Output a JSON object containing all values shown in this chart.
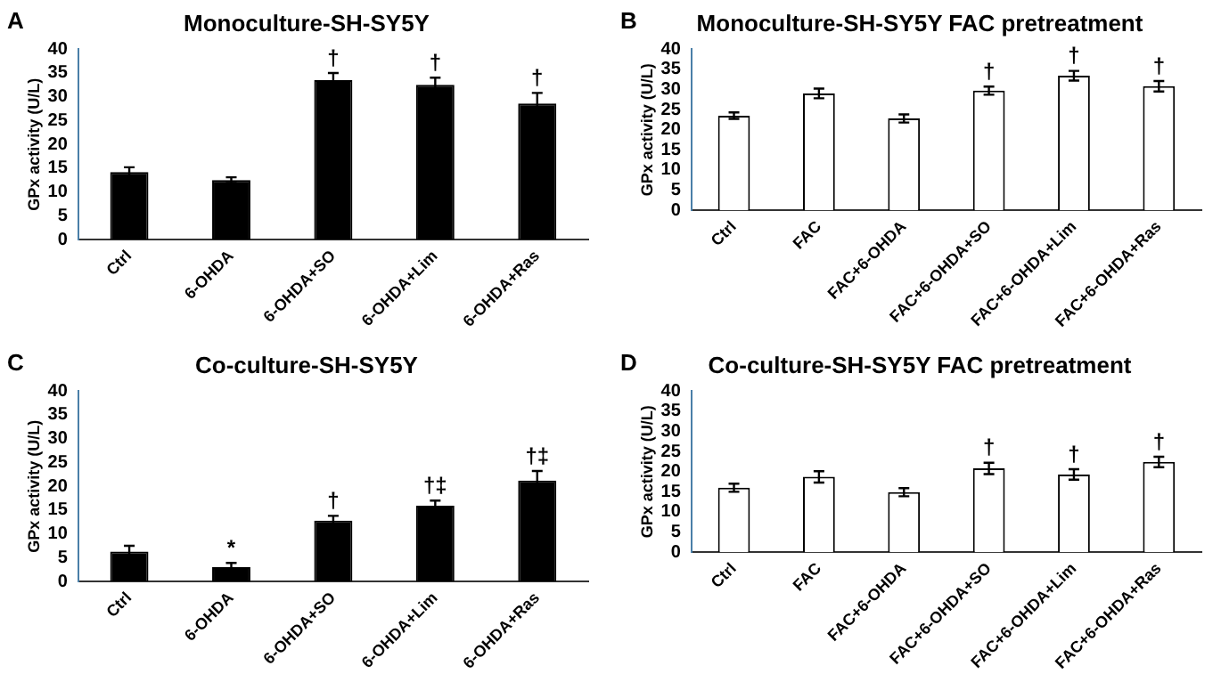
{
  "chart_data": [
    {
      "type": "bar",
      "title": "Monoculture-SH-SY5Y",
      "ylabel": "GPx activity (U/L)",
      "categories": [
        "Ctrl",
        "6-OHDA",
        "6-OHDA+SO",
        "6-OHDA+Lim",
        "6-OHDA+Ras"
      ],
      "values": [
        14.2,
        12.5,
        33.5,
        32.5,
        28.6
      ],
      "errors": [
        1.0,
        0.6,
        1.5,
        1.5,
        2.2
      ],
      "color": "#000000",
      "ylim": [
        0,
        40
      ],
      "yticks": [
        0,
        5,
        10,
        15,
        20,
        25,
        30,
        35,
        40
      ],
      "grid": false,
      "legend": false,
      "annotations": [
        "A",
        {
          "text": "†",
          "x": "6-OHDA+SO",
          "y": 35
        },
        {
          "text": "†",
          "x": "6-OHDA+Lim",
          "y": 34
        },
        {
          "text": "†",
          "x": "6-OHDA+Ras",
          "y": 30.8
        }
      ]
    },
    {
      "type": "bar",
      "title": "Monoculture-SH-SY5Y FAC pretreatment",
      "ylabel": "GPx activity (U/L)",
      "categories": [
        "Ctrl",
        "FAC",
        "FAC+6-OHDA",
        "FAC+6-OHDA+SO",
        "FAC+6-OHDA+Lim",
        "FAC+6-OHDA+Ras"
      ],
      "values": [
        23.5,
        29,
        22.8,
        29.7,
        33.4,
        30.8
      ],
      "errors": [
        0.8,
        1.2,
        1.0,
        1.0,
        1.2,
        1.3
      ],
      "color": "#ffffff",
      "ylim": [
        0,
        40
      ],
      "yticks": [
        0,
        5,
        10,
        15,
        20,
        25,
        30,
        35,
        40
      ],
      "grid": false,
      "legend": false,
      "annotations": [
        "B",
        {
          "text": "†",
          "x": "FAC+6-OHDA+SO",
          "y": 30.7
        },
        {
          "text": "†",
          "x": "FAC+6-OHDA+Lim",
          "y": 34.6
        },
        {
          "text": "†",
          "x": "FAC+6-OHDA+Ras",
          "y": 32.1
        }
      ]
    },
    {
      "type": "bar",
      "title": "Co-culture-SH-SY5Y",
      "ylabel": "GPx activity (U/L)",
      "categories": [
        "Ctrl",
        "6-OHDA",
        "6-OHDA+SO",
        "6-OHDA+Lim",
        "6-OHDA+Ras"
      ],
      "values": [
        6.3,
        3.0,
        12.8,
        15.9,
        21.2
      ],
      "errors": [
        1.2,
        0.9,
        1.0,
        1.1,
        2.0
      ],
      "color": "#000000",
      "ylim": [
        0,
        40
      ],
      "yticks": [
        0,
        5,
        10,
        15,
        20,
        25,
        30,
        35,
        40
      ],
      "grid": false,
      "legend": false,
      "annotations": [
        "C",
        {
          "text": "*",
          "x": "6-OHDA",
          "y": 3.9
        },
        {
          "text": "†",
          "x": "6-OHDA+SO",
          "y": 13.8
        },
        {
          "text": "†‡",
          "x": "6-OHDA+Lim",
          "y": 17
        },
        {
          "text": "†‡",
          "x": "6-OHDA+Ras",
          "y": 23.2
        }
      ]
    },
    {
      "type": "bar",
      "title": "Co-culture-SH-SY5Y FAC pretreatment",
      "ylabel": "GPx activity (U/L)",
      "categories": [
        "Ctrl",
        "FAC",
        "FAC+6-OHDA",
        "FAC+6-OHDA+SO",
        "FAC+6-OHDA+Lim",
        "FAC+6-OHDA+Ras"
      ],
      "values": [
        16.0,
        18.7,
        14.9,
        20.8,
        19.3,
        22.4
      ],
      "errors": [
        1.0,
        1.4,
        1.0,
        1.4,
        1.3,
        1.3
      ],
      "color": "#ffffff",
      "ylim": [
        0,
        40
      ],
      "yticks": [
        0,
        5,
        10,
        15,
        20,
        25,
        30,
        35,
        40
      ],
      "grid": false,
      "legend": false,
      "annotations": [
        "D",
        {
          "text": "†",
          "x": "FAC+6-OHDA+SO",
          "y": 22.2
        },
        {
          "text": "†",
          "x": "FAC+6-OHDA+Lim",
          "y": 20.6
        },
        {
          "text": "†",
          "x": "FAC+6-OHDA+Ras",
          "y": 23.7
        }
      ]
    }
  ]
}
